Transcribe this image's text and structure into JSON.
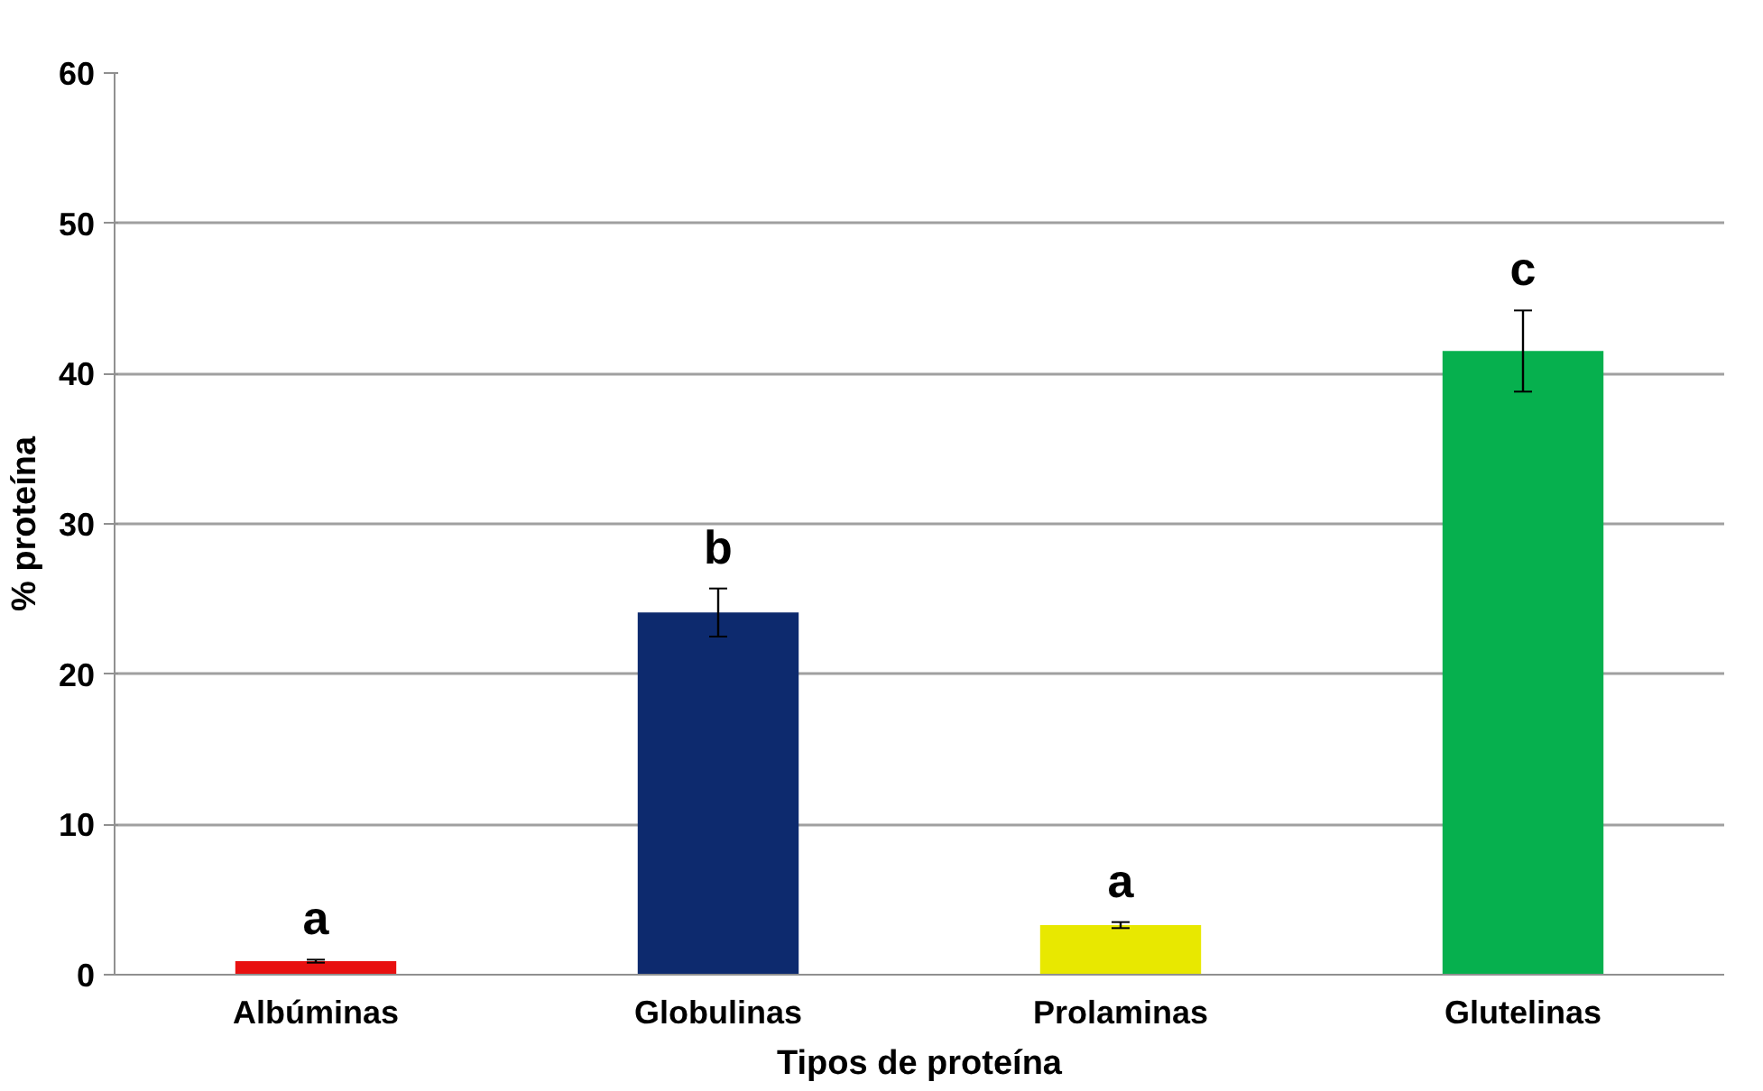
{
  "chart_data": {
    "type": "bar",
    "xlabel": "Tipos de proteína",
    "ylabel": "% proteína",
    "categories": [
      "Albúminas",
      "Globulinas",
      "Prolaminas",
      "Glutelinas"
    ],
    "values": [
      0.9,
      24.1,
      3.3,
      41.5
    ],
    "colors": [
      "#e81010",
      "#0d2a6e",
      "#e8e800",
      "#06b04e"
    ],
    "errors": [
      0.1,
      1.6,
      0.2,
      2.7
    ],
    "ylim": [
      0,
      60
    ],
    "yticks": [
      0,
      10,
      20,
      30,
      40,
      50,
      60
    ],
    "grid": "y",
    "annotations": [
      "a",
      "b",
      "a",
      "c"
    ]
  }
}
